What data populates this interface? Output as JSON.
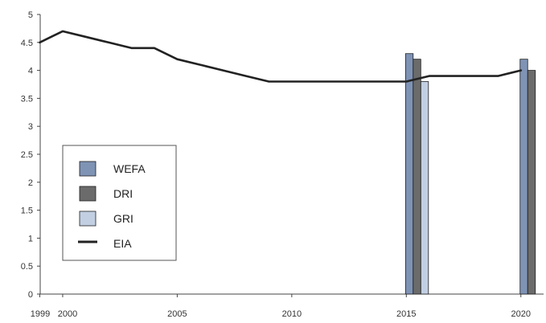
{
  "chart_data": {
    "type": "bar",
    "title": "",
    "xlabel": "",
    "ylabel": "",
    "xlim": [
      1999,
      2021
    ],
    "ylim": [
      0,
      5
    ],
    "y_ticks": [
      0,
      0.5,
      1,
      1.5,
      2,
      2.5,
      3,
      3.5,
      4,
      4.5,
      5
    ],
    "y_tick_labels": [
      "0",
      "0.5",
      "1",
      "1.5",
      "2",
      "2.5",
      "3",
      "3.5",
      "4",
      "4.5",
      "5"
    ],
    "x_ticks": [
      1999,
      2000,
      2005,
      2010,
      2015,
      2020
    ],
    "x_tick_labels": [
      "1999",
      "2000",
      "2005",
      "2010",
      "2015",
      "2020"
    ],
    "grid": false,
    "legend_position": "middle-left",
    "series": [
      {
        "name": "WEFA",
        "type": "bar",
        "color": "#7f93b5",
        "x": [
          2015,
          2020
        ],
        "values": [
          4.3,
          4.2
        ]
      },
      {
        "name": "DRI",
        "type": "bar",
        "color": "#6b6b6b",
        "x": [
          2015,
          2020
        ],
        "values": [
          4.2,
          4.0
        ]
      },
      {
        "name": "GRI",
        "type": "bar",
        "color": "#c2cfe3",
        "x": [
          2015
        ],
        "values": [
          3.8
        ]
      },
      {
        "name": "EIA",
        "type": "line",
        "color": "#222222",
        "x": [
          1999,
          1999.5,
          2000,
          2001,
          2002,
          2003,
          2004,
          2005,
          2006,
          2007,
          2008,
          2009,
          2010,
          2011,
          2012,
          2013,
          2014,
          2015,
          2016,
          2017,
          2018,
          2019,
          2020
        ],
        "values": [
          4.5,
          4.6,
          4.7,
          4.6,
          4.5,
          4.4,
          4.4,
          4.2,
          4.1,
          4.0,
          3.9,
          3.8,
          3.8,
          3.8,
          3.8,
          3.8,
          3.8,
          3.8,
          3.9,
          3.9,
          3.9,
          3.9,
          4.0
        ]
      }
    ]
  }
}
